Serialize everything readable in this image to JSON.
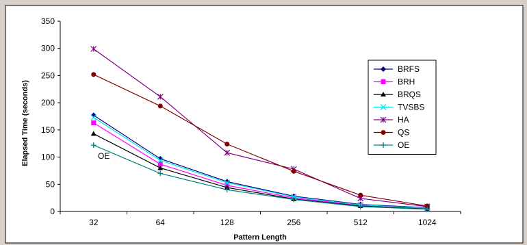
{
  "chart_data": {
    "type": "line",
    "title": "",
    "xlabel": "Pattern Length",
    "ylabel": "Elapsed Time (seconds)",
    "categories": [
      "32",
      "64",
      "128",
      "256",
      "512",
      "1024"
    ],
    "ylim": [
      0,
      350
    ],
    "yticks": [
      0,
      50,
      100,
      150,
      200,
      250,
      300,
      350
    ],
    "grid": false,
    "legend_position": "right",
    "annotation": "OE",
    "series": [
      {
        "name": "BRFS",
        "color": "#000080",
        "marker": "diamond",
        "values": [
          177,
          97,
          55,
          28,
          13,
          7
        ]
      },
      {
        "name": "BRH",
        "color": "#ff00ff",
        "marker": "square",
        "values": [
          163,
          87,
          48,
          25,
          11,
          6
        ]
      },
      {
        "name": "BRQS",
        "color": "#000000",
        "marker": "triangle",
        "values": [
          143,
          80,
          44,
          23,
          10,
          5
        ]
      },
      {
        "name": "TVSBS",
        "color": "#00e5ee",
        "marker": "x",
        "values": [
          173,
          94,
          53,
          27,
          12,
          6
        ]
      },
      {
        "name": "HA",
        "color": "#800080",
        "marker": "star",
        "values": [
          299,
          211,
          108,
          78,
          24,
          9
        ]
      },
      {
        "name": "QS",
        "color": "#800000",
        "marker": "circle",
        "values": [
          252,
          194,
          124,
          74,
          30,
          10
        ]
      },
      {
        "name": "OE",
        "color": "#008080",
        "marker": "plus",
        "values": [
          122,
          70,
          40,
          22,
          9,
          4
        ]
      }
    ]
  }
}
